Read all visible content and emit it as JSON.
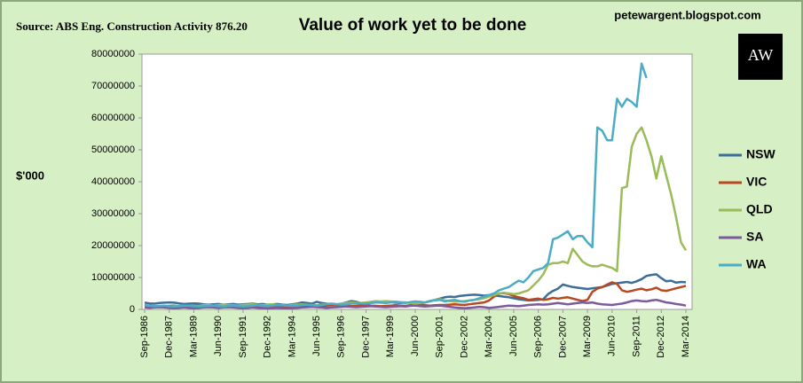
{
  "chart_data": {
    "type": "line",
    "title": "Value of work yet to be done",
    "source": "Source: ABS Eng. Construction Activity 876.20",
    "site": "petewargent.blogspot.com",
    "logo": "AW",
    "y_label": "$'000",
    "ylim": [
      0,
      80000000
    ],
    "yticks": [
      0,
      10000000,
      20000000,
      30000000,
      40000000,
      50000000,
      60000000,
      70000000,
      80000000
    ],
    "grid": false,
    "legend": "right",
    "categories": [
      "Sep-1986",
      null,
      null,
      null,
      null,
      "Dec-1987",
      null,
      null,
      null,
      null,
      "Mar-1989",
      null,
      null,
      null,
      null,
      "Jun-1990",
      null,
      null,
      null,
      null,
      "Sep-1991",
      null,
      null,
      null,
      null,
      "Dec-1992",
      null,
      null,
      null,
      null,
      "Mar-1994",
      null,
      null,
      null,
      null,
      "Jun-1995",
      null,
      null,
      null,
      null,
      "Sep-1996",
      null,
      null,
      null,
      null,
      "Dec-1997",
      null,
      null,
      null,
      null,
      "Mar-1999",
      null,
      null,
      null,
      null,
      "Jun-2000",
      null,
      null,
      null,
      null,
      "Sep-2001",
      null,
      null,
      null,
      null,
      "Dec-2002",
      null,
      null,
      null,
      null,
      "Mar-2004",
      null,
      null,
      null,
      null,
      "Jun-2005",
      null,
      null,
      null,
      null,
      "Sep-2006",
      null,
      null,
      null,
      null,
      "Dec-2007",
      null,
      null,
      null,
      null,
      "Mar-2009",
      null,
      null,
      null,
      null,
      "Jun-2010",
      null,
      null,
      null,
      null,
      "Sep-2011",
      null,
      null,
      null,
      null,
      "Dec-2012",
      null,
      null,
      null,
      null,
      "Mar-2014"
    ],
    "series": [
      {
        "name": "NSW",
        "color": "#3b6e98",
        "values": [
          2100000,
          1900000,
          1800000,
          2000000,
          2100000,
          2200000,
          2100000,
          1900000,
          1700000,
          1800000,
          1900000,
          1800000,
          1600000,
          1500000,
          1600000,
          1700000,
          1500000,
          1600000,
          1700000,
          1500000,
          1600000,
          1700000,
          1800000,
          1600000,
          1700000,
          1500000,
          1600000,
          1700000,
          1500000,
          1400000,
          1600000,
          1800000,
          2200000,
          2000000,
          1800000,
          2400000,
          2000000,
          1800000,
          1700000,
          1600000,
          1800000,
          2200000,
          2600000,
          2400000,
          2000000,
          1900000,
          2100000,
          2200000,
          2300000,
          2500000,
          2300000,
          2100000,
          2000000,
          2200000,
          2100000,
          2000000,
          1800000,
          2200000,
          2600000,
          3000000,
          3400000,
          3800000,
          4000000,
          3900000,
          4200000,
          4400000,
          4500000,
          4600000,
          4500000,
          4300000,
          4500000,
          4400000,
          4200000,
          4000000,
          3800000,
          3500000,
          3200000,
          3000000,
          2800000,
          2900000,
          3000000,
          3200000,
          4800000,
          5800000,
          6500000,
          7800000,
          7400000,
          7000000,
          6800000,
          6600000,
          6400000,
          6600000,
          6800000,
          7000000,
          7500000,
          8000000,
          8200000,
          8400000,
          8600000,
          8300000,
          8800000,
          9500000,
          10500000,
          10800000,
          11000000,
          9800000,
          8800000,
          9000000,
          8400000,
          8600000,
          8500000
        ]
      },
      {
        "name": "VIC",
        "color": "#b9471f",
        "values": [
          1000000,
          1100000,
          1000000,
          900000,
          1000000,
          1100000,
          1200000,
          1000000,
          900000,
          1000000,
          1100000,
          1200000,
          1300000,
          1100000,
          1000000,
          1200000,
          1300000,
          1100000,
          1000000,
          900000,
          1000000,
          1100000,
          1000000,
          900000,
          800000,
          900000,
          1000000,
          1100000,
          1000000,
          900000,
          1000000,
          1100000,
          1200000,
          1300000,
          1200000,
          1100000,
          1000000,
          1200000,
          1400000,
          1300000,
          1200000,
          1100000,
          1000000,
          1200000,
          1300000,
          1400000,
          1200000,
          1100000,
          1000000,
          1100000,
          1200000,
          1300000,
          1200000,
          1100000,
          1300000,
          1500000,
          1400000,
          1300000,
          1200000,
          1300000,
          1400000,
          1400000,
          1500000,
          1600000,
          1500000,
          1400000,
          1600000,
          1800000,
          2000000,
          2200000,
          2800000,
          4000000,
          5000000,
          5100000,
          4800000,
          4200000,
          3800000,
          3500000,
          3000000,
          3200000,
          3400000,
          3000000,
          3200000,
          3600000,
          3400000,
          3600000,
          3800000,
          3400000,
          3000000,
          2600000,
          3000000,
          5500000,
          6500000,
          7000000,
          7800000,
          8500000,
          8000000,
          6000000,
          5500000,
          5800000,
          6200000,
          6500000,
          6000000,
          6300000,
          6800000,
          6000000,
          5800000,
          6200000,
          6600000,
          7000000,
          7400000
        ]
      },
      {
        "name": "QLD",
        "color": "#9bbb59",
        "values": [
          800000,
          900000,
          1000000,
          900000,
          800000,
          900000,
          1000000,
          1100000,
          1200000,
          1100000,
          1000000,
          1100000,
          1300000,
          1400000,
          1200000,
          1300000,
          1500000,
          1400000,
          1300000,
          1200000,
          1400000,
          1500000,
          1600000,
          1400000,
          1300000,
          1500000,
          1600000,
          1400000,
          1300000,
          1200000,
          1400000,
          1500000,
          1600000,
          1500000,
          1400000,
          1300000,
          1500000,
          1700000,
          1800000,
          1600000,
          1800000,
          2000000,
          2200000,
          2100000,
          2000000,
          2200000,
          2400000,
          2600000,
          2500000,
          2600000,
          2500000,
          2400000,
          2300000,
          2200000,
          2000000,
          1800000,
          2000000,
          2200000,
          2500000,
          3000000,
          3200000,
          2800000,
          2600000,
          2400000,
          2500000,
          2600000,
          2800000,
          3000000,
          3200000,
          3500000,
          4000000,
          4500000,
          5000000,
          5200000,
          5000000,
          4800000,
          5000000,
          5500000,
          6000000,
          7500000,
          9000000,
          11000000,
          14000000,
          14500000,
          14500000,
          15000000,
          14500000,
          19000000,
          17000000,
          15000000,
          14000000,
          13500000,
          13500000,
          14000000,
          13500000,
          13000000,
          12000000,
          38000000,
          38500000,
          51000000,
          55000000,
          57000000,
          53000000,
          48000000,
          41000000,
          48000000,
          42000000,
          36000000,
          29000000,
          21000000,
          18500000
        ]
      },
      {
        "name": "SA",
        "color": "#7b5b9b",
        "values": [
          600000,
          500000,
          600000,
          700000,
          600000,
          500000,
          400000,
          500000,
          600000,
          500000,
          400000,
          500000,
          600000,
          700000,
          600000,
          500000,
          600000,
          700000,
          600000,
          500000,
          400000,
          500000,
          600000,
          500000,
          400000,
          300000,
          400000,
          500000,
          400000,
          300000,
          400000,
          500000,
          600000,
          700000,
          800000,
          700000,
          600000,
          500000,
          600000,
          700000,
          800000,
          900000,
          800000,
          700000,
          800000,
          900000,
          1000000,
          900000,
          800000,
          700000,
          800000,
          900000,
          1000000,
          900000,
          1100000,
          1200000,
          1000000,
          900000,
          1000000,
          1100000,
          1200000,
          1000000,
          800000,
          600000,
          500000,
          400000,
          500000,
          600000,
          800000,
          700000,
          500000,
          600000,
          800000,
          1000000,
          1200000,
          1100000,
          1000000,
          1200000,
          1400000,
          1500000,
          1600000,
          1500000,
          1600000,
          1800000,
          2000000,
          1800000,
          1600000,
          1800000,
          2000000,
          2200000,
          2000000,
          2200000,
          1800000,
          1600000,
          1500000,
          1400000,
          1600000,
          1800000,
          2200000,
          2600000,
          2800000,
          2600000,
          2500000,
          2800000,
          3000000,
          2600000,
          2200000,
          2000000,
          1700000,
          1500000,
          1200000
        ]
      },
      {
        "name": "WA",
        "color": "#4bacc6",
        "values": [
          1400000,
          1200000,
          1000000,
          1100000,
          1200000,
          1000000,
          900000,
          1000000,
          1100000,
          1200000,
          1000000,
          900000,
          1000000,
          1100000,
          1200000,
          1000000,
          900000,
          1100000,
          1200000,
          1000000,
          900000,
          1000000,
          1200000,
          1300000,
          1100000,
          1000000,
          1200000,
          1400000,
          1300000,
          1200000,
          1100000,
          1200000,
          1400000,
          1500000,
          1300000,
          1200000,
          1400000,
          1600000,
          1800000,
          1600000,
          1500000,
          1600000,
          1800000,
          2000000,
          1900000,
          1800000,
          2000000,
          2200000,
          2100000,
          2000000,
          2200000,
          2400000,
          2200000,
          2000000,
          2300000,
          2500000,
          2400000,
          2200000,
          2600000,
          2800000,
          3000000,
          2500000,
          2800000,
          3000000,
          2600000,
          2400000,
          2800000,
          3000000,
          3500000,
          4000000,
          4500000,
          5000000,
          6000000,
          6500000,
          7000000,
          8000000,
          9000000,
          8500000,
          10000000,
          12000000,
          12500000,
          13000000,
          14500000,
          22000000,
          22500000,
          23500000,
          24500000,
          22000000,
          23000000,
          23000000,
          21000000,
          19500000,
          57000000,
          56000000,
          53000000,
          53000000,
          66000000,
          63500000,
          66000000,
          65000000,
          63500000,
          77000000,
          72500000,
          null,
          null,
          null,
          null,
          null,
          null,
          null,
          null
        ]
      }
    ]
  }
}
